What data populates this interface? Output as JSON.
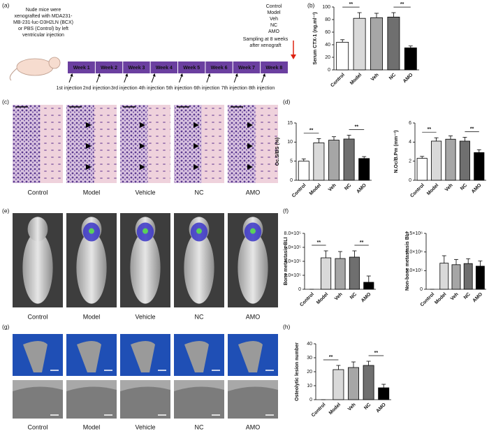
{
  "figure": {
    "panel_labels": [
      "(a)",
      "(b)",
      "(c)",
      "(d)",
      "(e)",
      "(f)",
      "(g)",
      "(h)"
    ],
    "timeline": {
      "description": [
        "Nude mice were",
        "xenografted with MDA231-",
        "MB-231-luc-D3H2LN (BCX)",
        "or PBS (Control) by left",
        "ventricular injection"
      ],
      "groups": [
        "Control",
        "Model",
        "Veh",
        "NC",
        "AMO"
      ],
      "sampling": [
        "Sampling at 8 weeks",
        "after xenograft"
      ],
      "weeks": [
        "Week 1",
        "Week 2",
        "Week 3",
        "Week 4",
        "Week 5",
        "Week 6",
        "Week 7",
        "Week 8"
      ],
      "injections": [
        "1st injection",
        "2nd injection",
        "3rd injection",
        "4th injection",
        "5th injection",
        "6th injection",
        "7th injection",
        "8th injection"
      ]
    },
    "histology_labels": [
      "Control",
      "Model",
      "Vehicle",
      "NC",
      "AMO"
    ],
    "bli_labels": [
      "Control",
      "Model",
      "Vehicle",
      "NC",
      "AMO"
    ],
    "microct_labels": [
      "Control",
      "Model",
      "Vehicle",
      "NC",
      "AMO"
    ]
  },
  "chart_data": [
    {
      "type": "bar",
      "ylabel": "Serum CTX-1 (ng.ml⁻¹)",
      "categories": [
        "Control",
        "Model",
        "Veh",
        "NC",
        "AMO"
      ],
      "values": [
        44,
        82,
        83,
        84,
        35
      ],
      "errors": [
        4,
        9,
        7,
        7,
        3
      ],
      "colors": [
        "#ffffff",
        "#d9d9d9",
        "#a6a6a6",
        "#6f6f6f",
        "#000000"
      ],
      "ylim": [
        0,
        100
      ],
      "yticks": [
        0,
        20,
        40,
        60,
        80,
        100
      ],
      "annotations": [
        {
          "text": "**",
          "between": [
            "Control",
            "Model"
          ]
        },
        {
          "text": "**",
          "between": [
            "NC",
            "AMO"
          ]
        }
      ]
    },
    {
      "type": "bar",
      "ylabel": "Oc.S/BS (%)",
      "categories": [
        "Control",
        "Model",
        "Veh",
        "NC",
        "AMO"
      ],
      "values": [
        5.0,
        9.8,
        10.5,
        10.8,
        5.7
      ],
      "errors": [
        0.6,
        1.1,
        0.9,
        1.0,
        0.5
      ],
      "colors": [
        "#ffffff",
        "#d9d9d9",
        "#a6a6a6",
        "#6f6f6f",
        "#000000"
      ],
      "ylim": [
        0,
        15
      ],
      "yticks": [
        0,
        5,
        10,
        15
      ],
      "annotations": [
        {
          "text": "**",
          "between": [
            "Control",
            "Model"
          ]
        },
        {
          "text": "**",
          "between": [
            "NC",
            "AMO"
          ]
        }
      ]
    },
    {
      "type": "bar",
      "ylabel": "N.Oc/B.Pm (mm⁻¹)",
      "categories": [
        "Control",
        "Model",
        "Veh",
        "NC",
        "AMO"
      ],
      "values": [
        2.3,
        4.1,
        4.3,
        4.1,
        2.9
      ],
      "errors": [
        0.2,
        0.35,
        0.35,
        0.4,
        0.3
      ],
      "colors": [
        "#ffffff",
        "#d9d9d9",
        "#a6a6a6",
        "#6f6f6f",
        "#000000"
      ],
      "ylim": [
        0,
        6
      ],
      "yticks": [
        0,
        2,
        4,
        6
      ],
      "annotations": [
        {
          "text": "**",
          "between": [
            "Control",
            "Model"
          ]
        },
        {
          "text": "**",
          "between": [
            "NC",
            "AMO"
          ]
        }
      ]
    },
    {
      "type": "bar",
      "ylabel": "Bone metastasis BLI",
      "categories": [
        "Control",
        "Model",
        "Veh",
        "NC",
        "AMO"
      ],
      "values": [
        0,
        450000,
        440000,
        460000,
        100000
      ],
      "errors": [
        0,
        100000,
        100000,
        90000,
        90000
      ],
      "colors": [
        "#ffffff",
        "#d9d9d9",
        "#a6a6a6",
        "#6f6f6f",
        "#000000"
      ],
      "ylim": [
        0,
        800000
      ],
      "yticks": [
        0,
        {
          "value": 200000,
          "label": "2.0×10⁵"
        },
        {
          "value": 400000,
          "label": "4.0×10⁵"
        },
        {
          "value": 600000,
          "label": "6.0×10⁵"
        },
        {
          "value": 800000,
          "label": "8.0×10⁵"
        }
      ],
      "annotations": [
        {
          "text": "**",
          "between": [
            "Control",
            "Model"
          ]
        },
        {
          "text": "**",
          "between": [
            "NC",
            "AMO"
          ]
        }
      ]
    },
    {
      "type": "bar",
      "ylabel": "Non-bone metastasis BLI",
      "categories": [
        "Control",
        "Model",
        "Veh",
        "NC",
        "AMO"
      ],
      "values": [
        0,
        700000,
        660000,
        690000,
        620000
      ],
      "errors": [
        0,
        200000,
        140000,
        130000,
        140000
      ],
      "colors": [
        "#ffffff",
        "#d9d9d9",
        "#a6a6a6",
        "#6f6f6f",
        "#000000"
      ],
      "ylim": [
        0,
        1500000
      ],
      "yticks": [
        0,
        {
          "value": 500000,
          "label": "5.0×10⁵"
        },
        {
          "value": 1000000,
          "label": "1.0×10⁶"
        },
        {
          "value": 1500000,
          "label": "1.5×10⁶"
        }
      ],
      "annotations": []
    },
    {
      "type": "bar",
      "ylabel": "Osteolytic lesion number",
      "categories": [
        "Control",
        "Model",
        "Veh",
        "NC",
        "AMO"
      ],
      "values": [
        0,
        21.5,
        23,
        24.5,
        8.5
      ],
      "errors": [
        0,
        3,
        4,
        3,
        2.5
      ],
      "colors": [
        "#ffffff",
        "#d9d9d9",
        "#a6a6a6",
        "#6f6f6f",
        "#000000"
      ],
      "ylim": [
        0,
        40
      ],
      "yticks": [
        0,
        10,
        20,
        30,
        40
      ],
      "annotations": [
        {
          "text": "**",
          "between": [
            "Control",
            "Model"
          ]
        },
        {
          "text": "**",
          "between": [
            "NC",
            "AMO"
          ]
        }
      ]
    }
  ]
}
